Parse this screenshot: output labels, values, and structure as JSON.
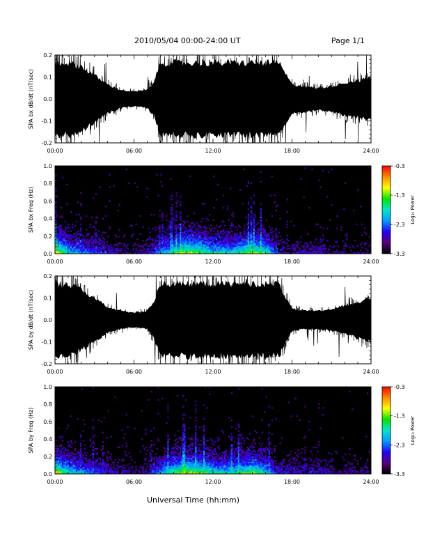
{
  "header": {
    "title": "2010/05/04  00:00-24:00 UT",
    "page": "Page 1/1"
  },
  "x_axis_caption": "Universal Time (hh:mm)",
  "colorbar": {
    "label": "Log₁₀ Power",
    "ticks": [
      "-0.3",
      "-1.3",
      "-2.3",
      "-3.3"
    ],
    "range": [
      -3.3,
      -0.3
    ],
    "colormap": [
      "#000000",
      "#5a007a",
      "#2400ff",
      "#009cff",
      "#00e6c8",
      "#00e600",
      "#ffff00",
      "#ff8c00",
      "#ff0000"
    ]
  },
  "chart_data": [
    {
      "type": "line",
      "title": "",
      "ylabel": "SPA bx dB/dt (nT/sec)",
      "xlabel": "",
      "xlim": [
        "00:00",
        "24:00"
      ],
      "ylim": [
        -0.2,
        0.2
      ],
      "x_ticks": [
        "00:00",
        "06:00",
        "12:00",
        "18:00",
        "24:00"
      ],
      "y_ticks": [
        "0.2",
        "0.1",
        "0.0",
        "-0.1",
        "-0.2"
      ],
      "envelope": {
        "hours": [
          0,
          0.5,
          1,
          2,
          3,
          4,
          5,
          6,
          7,
          7.5,
          8,
          9,
          10,
          11,
          12,
          13,
          14,
          15,
          16,
          16.5,
          17,
          18,
          19,
          20,
          21,
          22,
          23,
          24
        ],
        "amplitude": [
          0.2,
          0.2,
          0.2,
          0.18,
          0.13,
          0.08,
          0.05,
          0.04,
          0.05,
          0.09,
          0.2,
          0.2,
          0.2,
          0.2,
          0.2,
          0.2,
          0.2,
          0.2,
          0.2,
          0.2,
          0.2,
          0.08,
          0.07,
          0.06,
          0.07,
          0.09,
          0.1,
          0.12
        ]
      }
    },
    {
      "type": "heatmap",
      "title": "",
      "ylabel": "SPA bx Freq (Hz)",
      "xlabel": "",
      "xlim": [
        "00:00",
        "24:00"
      ],
      "ylim": [
        0.0,
        1.0
      ],
      "x_ticks": [
        "00:00",
        "06:00",
        "12:00",
        "18:00",
        "24:00"
      ],
      "y_ticks": [
        "1.0",
        "0.8",
        "0.6",
        "0.4",
        "0.2",
        "0.0"
      ],
      "z_range": [
        -3.3,
        -0.3
      ],
      "activity": {
        "hours": [
          0,
          0.5,
          1,
          2,
          3,
          4,
          5,
          6,
          7,
          8,
          9,
          10,
          11,
          12,
          13,
          14,
          15,
          16,
          17,
          18,
          19,
          20,
          21,
          22,
          23,
          24
        ],
        "level": [
          1.0,
          0.8,
          0.6,
          0.45,
          0.35,
          0.25,
          0.2,
          0.15,
          0.2,
          0.45,
          0.7,
          0.85,
          0.8,
          0.6,
          0.6,
          0.65,
          0.8,
          0.7,
          0.25,
          0.2,
          0.2,
          0.25,
          0.15,
          0.15,
          0.15,
          0.15
        ]
      }
    },
    {
      "type": "line",
      "title": "",
      "ylabel": "SPA by dB/dt (nT/sec)",
      "xlabel": "",
      "xlim": [
        "00:00",
        "24:00"
      ],
      "ylim": [
        -0.2,
        0.2
      ],
      "x_ticks": [
        "00:00",
        "06:00",
        "12:00",
        "18:00",
        "24:00"
      ],
      "y_ticks": [
        "0.2",
        "0.1",
        "0.0",
        "-0.1",
        "-0.2"
      ],
      "envelope": {
        "hours": [
          0,
          0.5,
          1,
          2,
          3,
          4,
          5,
          6,
          7,
          7.5,
          8,
          9,
          10,
          11,
          12,
          13,
          14,
          15,
          16,
          16.5,
          17,
          18,
          19,
          20,
          21,
          22,
          23,
          24
        ],
        "amplitude": [
          0.2,
          0.2,
          0.2,
          0.17,
          0.12,
          0.07,
          0.05,
          0.04,
          0.05,
          0.1,
          0.2,
          0.2,
          0.2,
          0.2,
          0.2,
          0.2,
          0.2,
          0.2,
          0.2,
          0.2,
          0.2,
          0.06,
          0.05,
          0.05,
          0.06,
          0.08,
          0.1,
          0.12
        ]
      }
    },
    {
      "type": "heatmap",
      "title": "",
      "ylabel": "SPA by Freq (Hz)",
      "xlabel": "",
      "xlim": [
        "00:00",
        "24:00"
      ],
      "ylim": [
        0.0,
        1.0
      ],
      "x_ticks": [
        "00:00",
        "06:00",
        "12:00",
        "18:00",
        "24:00"
      ],
      "y_ticks": [
        "1.0",
        "0.8",
        "0.6",
        "0.4",
        "0.2",
        "0.0"
      ],
      "z_range": [
        -3.3,
        -0.3
      ],
      "activity": {
        "hours": [
          0,
          0.5,
          1,
          2,
          3,
          4,
          5,
          6,
          7,
          8,
          9,
          10,
          11,
          12,
          13,
          14,
          15,
          16,
          17,
          18,
          19,
          20,
          21,
          22,
          23,
          24
        ],
        "level": [
          1.0,
          0.85,
          0.65,
          0.5,
          0.4,
          0.3,
          0.22,
          0.18,
          0.22,
          0.5,
          0.75,
          0.9,
          0.8,
          0.65,
          0.6,
          0.7,
          0.8,
          0.6,
          0.3,
          0.25,
          0.25,
          0.25,
          0.2,
          0.15,
          0.15,
          0.15
        ]
      }
    }
  ]
}
